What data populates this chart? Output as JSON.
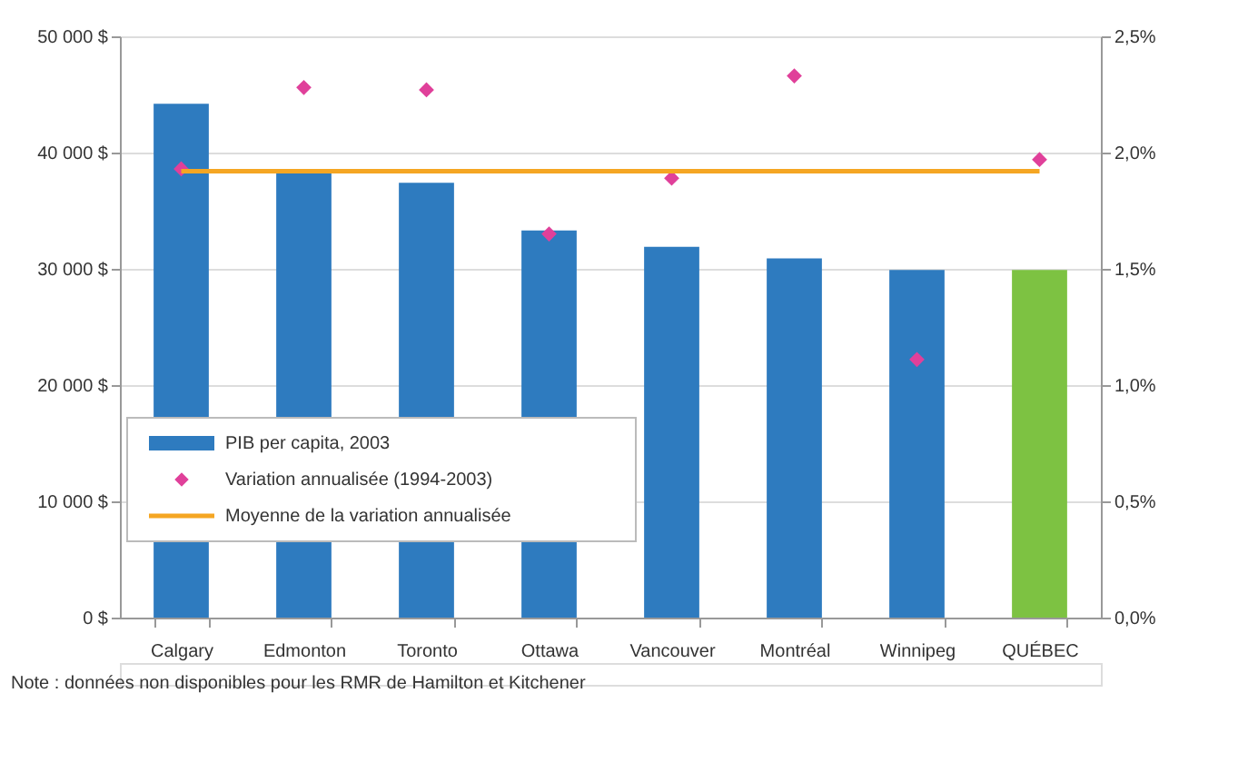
{
  "chart_data": {
    "type": "bar",
    "categories": [
      "Calgary",
      "Edmonton",
      "Toronto",
      "Ottawa",
      "Vancouver",
      "Montréal",
      "Winnipeg",
      "QUÉBEC"
    ],
    "series": [
      {
        "name": "PIB per capita, 2003",
        "type": "bar",
        "color": "#2e7bbf",
        "colors": [
          "#2e7bbf",
          "#2e7bbf",
          "#2e7bbf",
          "#2e7bbf",
          "#2e7bbf",
          "#2e7bbf",
          "#2e7bbf",
          "#7dc242"
        ],
        "values": [
          44200,
          38500,
          37400,
          33300,
          31900,
          30900,
          29900,
          29900
        ]
      },
      {
        "name": "Variation annualisée (1994-2003)",
        "type": "scatter",
        "axis": "y2",
        "marker": "diamond",
        "color": "#e0409a",
        "values": [
          1.93,
          2.28,
          2.27,
          1.65,
          1.89,
          2.33,
          1.11,
          1.97
        ]
      },
      {
        "name": "Moyenne de la variation annualisée",
        "type": "line",
        "axis": "y2",
        "color": "#f5a623",
        "values": [
          1.92,
          1.92,
          1.92,
          1.92,
          1.92,
          1.92,
          1.92,
          1.92
        ]
      }
    ],
    "ylim": [
      0,
      50000
    ],
    "yticks": [
      {
        "value": 0,
        "label": "0 $"
      },
      {
        "value": 10000,
        "label": "10 000 $"
      },
      {
        "value": 20000,
        "label": "20 000 $"
      },
      {
        "value": 30000,
        "label": "30 000 $"
      },
      {
        "value": 40000,
        "label": "40 000 $"
      },
      {
        "value": 50000,
        "label": "50 000 $"
      }
    ],
    "y2lim": [
      0,
      2.5
    ],
    "y2ticks": [
      {
        "value": 0,
        "label": "0,0%"
      },
      {
        "value": 0.5,
        "label": "0,5%"
      },
      {
        "value": 1,
        "label": "1,0%"
      },
      {
        "value": 1.5,
        "label": "1,5%"
      },
      {
        "value": 2,
        "label": "2,0%"
      },
      {
        "value": 2.5,
        "label": "2,5%"
      }
    ],
    "grid": "y",
    "legend": "bottom left",
    "annotations": [
      "Note : données non disponibles pour les RMR de Hamilton et Kitchener"
    ]
  }
}
